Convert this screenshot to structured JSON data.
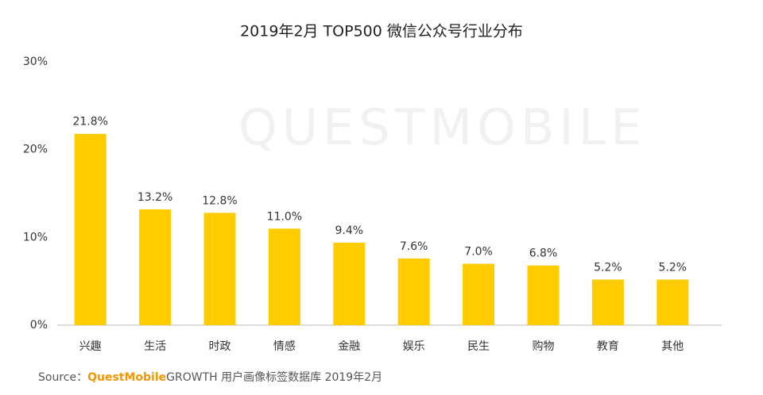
{
  "chart_data": {
    "type": "bar",
    "title": "2019年2月 TOP500 微信公众号行业分布",
    "watermark": "QUESTMOBILE",
    "categories": [
      "兴趣",
      "生活",
      "时政",
      "情感",
      "金融",
      "娱乐",
      "民生",
      "购物",
      "教育",
      "其他"
    ],
    "values": [
      21.8,
      13.2,
      12.8,
      11.0,
      9.4,
      7.6,
      7.0,
      6.8,
      5.2,
      5.2
    ],
    "value_labels": [
      "21.8%",
      "13.2%",
      "12.8%",
      "11.0%",
      "9.4%",
      "7.6%",
      "7.0%",
      "6.8%",
      "5.2%",
      "5.2%"
    ],
    "color": "#ffcc00",
    "ylim": [
      0,
      30
    ],
    "yticks": [
      {
        "value": 0,
        "label": "0%"
      },
      {
        "value": 10,
        "label": "10%"
      },
      {
        "value": 20,
        "label": "20%"
      },
      {
        "value": 30,
        "label": "30%"
      }
    ],
    "source": {
      "label": "Source：",
      "brand": "QuestMobile",
      "rest": "GROWTH 用户画像标签数据库  2019年2月"
    }
  }
}
